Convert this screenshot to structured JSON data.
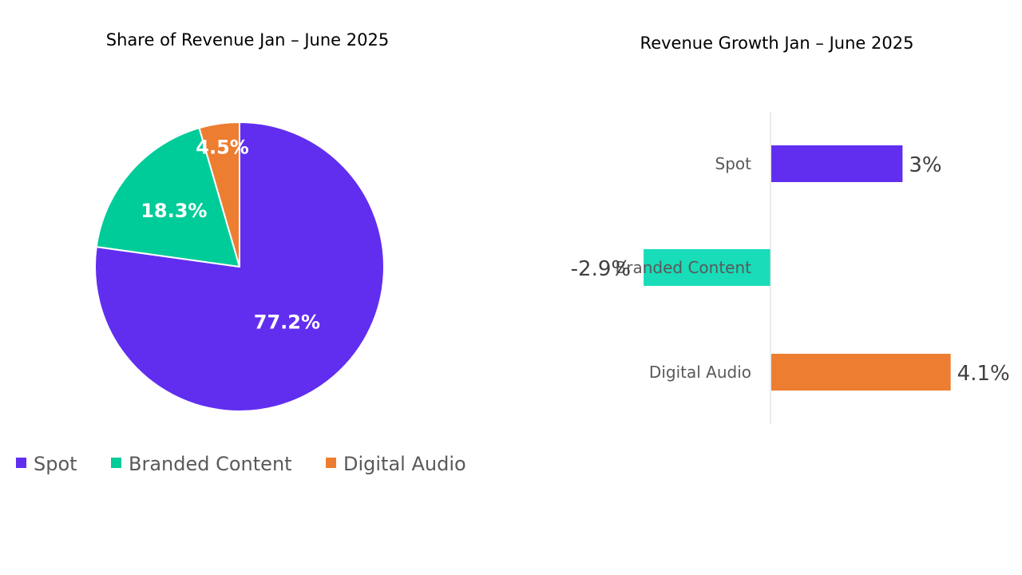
{
  "colors": {
    "spot": "#612ef0",
    "branded": "#00cc99",
    "branded_bar": "#19dcb8",
    "digital": "#ed7d31",
    "axis": "#d9d9d9",
    "text": "#000000",
    "label": "#595959",
    "value": "#404040"
  },
  "chart_data": [
    {
      "type": "pie",
      "title": "Share of Revenue Jan – June 2025",
      "categories": [
        "Spot",
        "Branded Content",
        "Digital Audio"
      ],
      "values": [
        77.2,
        18.3,
        4.5
      ],
      "data_labels": [
        "77.2%",
        "18.3%",
        "4.5%"
      ],
      "start_angle_deg": 0,
      "direction": "clockwise",
      "legend": {
        "position": "bottom-left",
        "entries": [
          "Spot",
          "Branded Content",
          "Digital Audio"
        ]
      }
    },
    {
      "type": "bar",
      "orientation": "horizontal",
      "title": "Revenue Growth Jan – June 2025",
      "categories": [
        "Spot",
        "Branded Content",
        "Digital Audio"
      ],
      "values": [
        3.0,
        -2.9,
        4.1
      ],
      "data_labels": [
        "3%",
        "-2.9%",
        "4.1%"
      ],
      "grid": false,
      "legend": null
    }
  ]
}
